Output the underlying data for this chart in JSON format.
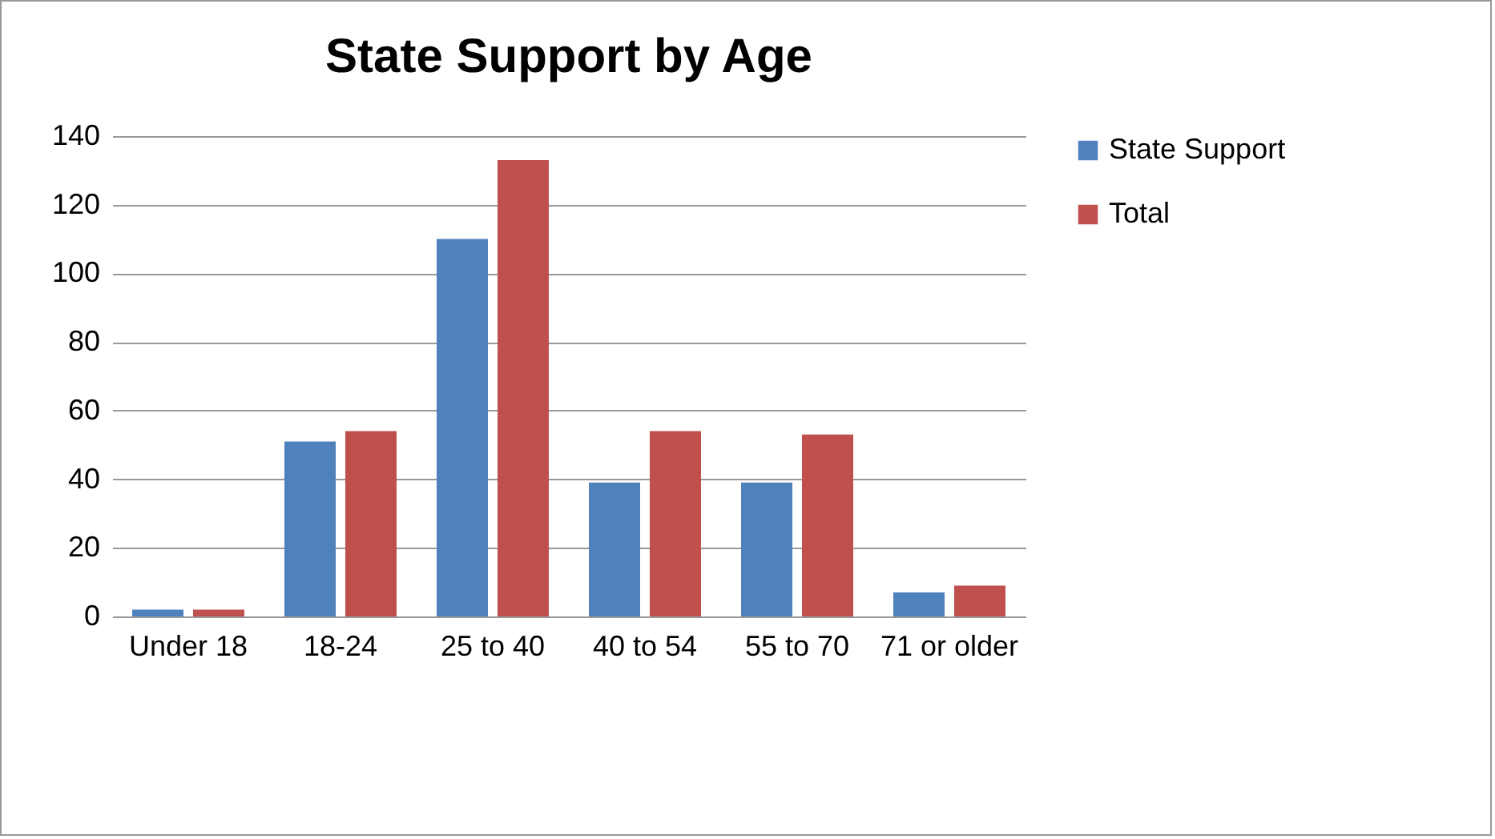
{
  "chart_data": {
    "type": "bar",
    "title": "State Support by Age",
    "categories": [
      "Under 18",
      "18-24",
      "25 to 40",
      "40 to 54",
      "55 to 70",
      "71 or older"
    ],
    "series": [
      {
        "name": "State Support",
        "color": "#4f81bd",
        "values": [
          2,
          51,
          110,
          39,
          39,
          7
        ]
      },
      {
        "name": "Total",
        "color": "#c0504d",
        "values": [
          2,
          54,
          133,
          54,
          53,
          9
        ]
      }
    ],
    "ylim": [
      0,
      140
    ],
    "yticks": [
      0,
      20,
      40,
      60,
      80,
      100,
      120,
      140
    ],
    "grid": "y",
    "legend": "right"
  }
}
